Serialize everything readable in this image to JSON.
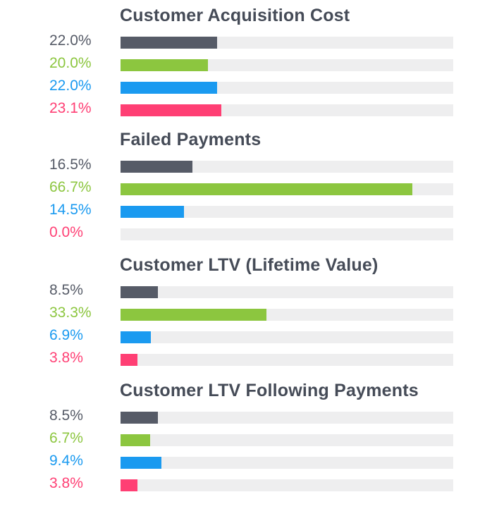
{
  "chart_data": {
    "type": "bar",
    "orientation": "horizontal",
    "xlim": [
      0,
      76
    ],
    "series_colors": [
      "#565b67",
      "#8cc63f",
      "#1a9af0",
      "#ff3f74"
    ],
    "groups": [
      {
        "title": "Customer Acquisition Cost",
        "values": [
          22.0,
          20.0,
          22.0,
          23.1
        ],
        "labels": [
          "22.0%",
          "20.0%",
          "22.0%",
          "23.1%"
        ]
      },
      {
        "title": "Failed Payments",
        "values": [
          16.5,
          66.7,
          14.5,
          0.0
        ],
        "labels": [
          "16.5%",
          "66.7%",
          "14.5%",
          "0.0%"
        ]
      },
      {
        "title": "Customer LTV (Lifetime Value)",
        "values": [
          8.5,
          33.3,
          6.9,
          3.8
        ],
        "labels": [
          "8.5%",
          "33.3%",
          "6.9%",
          "3.8%"
        ]
      },
      {
        "title": "Customer LTV Following Payments",
        "values": [
          8.5,
          6.7,
          9.4,
          3.8
        ],
        "labels": [
          "8.5%",
          "6.7%",
          "9.4%",
          "3.8%"
        ]
      }
    ]
  }
}
